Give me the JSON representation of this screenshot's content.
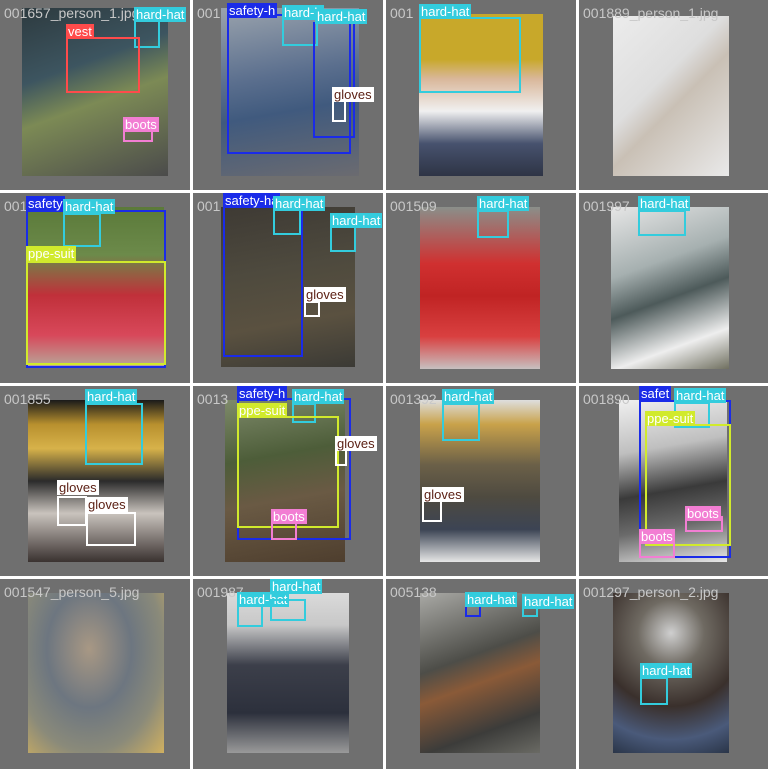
{
  "class_colors": {
    "hard-hat": "#33ccdd",
    "vest": "#ff4b4b",
    "boots": "#f27ed3",
    "gloves": "#ffffff",
    "safety-harness": "#1a2be8",
    "ppe-suit": "#d1ea2c"
  },
  "tiles": [
    {
      "filename": "001657_person_1.jpg",
      "labels": [
        {
          "text": "hard-hat",
          "cls": "hard-hat"
        },
        {
          "text": "vest",
          "cls": "vest"
        },
        {
          "text": "boots",
          "cls": "boots"
        }
      ]
    },
    {
      "filename": "001",
      "labels": [
        {
          "text": "safety-h",
          "cls": "safety-harness"
        },
        {
          "text": "hard-h",
          "cls": "hard-hat"
        },
        {
          "text": "hard-hat",
          "cls": "hard-hat"
        },
        {
          "text": "gloves",
          "cls": "gloves"
        }
      ]
    },
    {
      "filename": "001",
      "labels": [
        {
          "text": "hard-hat",
          "cls": "hard-hat"
        }
      ]
    },
    {
      "filename": "001889_person_1.jpg",
      "labels": []
    },
    {
      "filename": "001",
      "labels": [
        {
          "text": "safety",
          "cls": "safety-harness"
        },
        {
          "text": "hard-hat",
          "cls": "hard-hat"
        },
        {
          "text": "ppe-suit",
          "cls": "ppe-suit"
        }
      ]
    },
    {
      "filename": "001",
      "labels": [
        {
          "text": "safety-ha",
          "cls": "safety-harness"
        },
        {
          "text": "hard-hat",
          "cls": "hard-hat"
        },
        {
          "text": "hard-hat",
          "cls": "hard-hat"
        },
        {
          "text": "gloves",
          "cls": "gloves"
        }
      ]
    },
    {
      "filename": "001509",
      "labels": [
        {
          "text": "hard-hat",
          "cls": "hard-hat"
        }
      ]
    },
    {
      "filename": "001997",
      "labels": [
        {
          "text": "hard-hat",
          "cls": "hard-hat"
        }
      ]
    },
    {
      "filename": "001855",
      "labels": [
        {
          "text": "hard-hat",
          "cls": "hard-hat"
        },
        {
          "text": "gloves",
          "cls": "gloves"
        },
        {
          "text": "gloves",
          "cls": "gloves"
        }
      ]
    },
    {
      "filename": "0013",
      "labels": [
        {
          "text": "safety-h",
          "cls": "safety-harness"
        },
        {
          "text": "hard-hat",
          "cls": "hard-hat"
        },
        {
          "text": "ppe-suit",
          "cls": "ppe-suit"
        },
        {
          "text": "gloves",
          "cls": "gloves"
        },
        {
          "text": "boots",
          "cls": "boots"
        }
      ]
    },
    {
      "filename": "001392",
      "labels": [
        {
          "text": "hard-hat",
          "cls": "hard-hat"
        },
        {
          "text": "gloves",
          "cls": "gloves"
        }
      ]
    },
    {
      "filename": "001890",
      "labels": [
        {
          "text": "safet",
          "cls": "safety-harness"
        },
        {
          "text": "hard-hat",
          "cls": "hard-hat"
        },
        {
          "text": "ppe-suit",
          "cls": "ppe-suit"
        },
        {
          "text": "boots",
          "cls": "boots"
        },
        {
          "text": "boots",
          "cls": "boots"
        }
      ]
    },
    {
      "filename": "001547_person_5.jpg",
      "labels": []
    },
    {
      "filename": "001987",
      "labels": [
        {
          "text": "hard-hat",
          "cls": "hard-hat"
        },
        {
          "text": "hard-hat",
          "cls": "hard-hat"
        }
      ]
    },
    {
      "filename": "005138",
      "labels": [
        {
          "text": "hard-hat",
          "cls": "hard-hat"
        },
        {
          "text": "hard-hat",
          "cls": "hard-hat"
        }
      ]
    },
    {
      "filename": "001297_person_2.jpg",
      "labels": [
        {
          "text": "hard-hat",
          "cls": "hard-hat"
        }
      ]
    }
  ]
}
